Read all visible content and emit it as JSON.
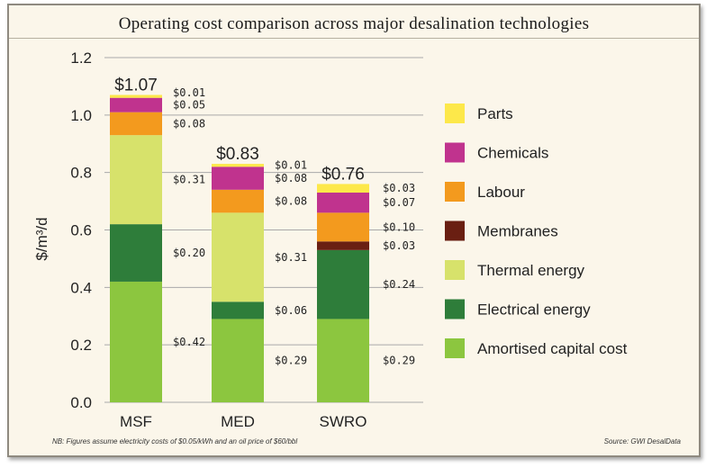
{
  "chart_data": {
    "type": "bar",
    "stacked": true,
    "title": "Operating cost comparison across major desalination technologies",
    "ylabel": "$/m³/d",
    "ylim": [
      0,
      1.2
    ],
    "yticks": [
      "0.0",
      "0.2",
      "0.4",
      "0.6",
      "0.8",
      "1.0",
      "1.2"
    ],
    "categories": [
      "MSF",
      "MED",
      "SWRO"
    ],
    "totals": [
      "$1.07",
      "$0.83",
      "$0.76"
    ],
    "series": [
      {
        "name": "Amortised capital cost",
        "color": "#8cc63f",
        "values": [
          0.42,
          0.29,
          0.29
        ],
        "labels": [
          "$0.42",
          "$0.29",
          "$0.29"
        ]
      },
      {
        "name": "Electrical energy",
        "color": "#2e7d3a",
        "values": [
          0.2,
          0.06,
          0.24
        ],
        "labels": [
          "$0.20",
          "$0.06",
          "$0.24"
        ]
      },
      {
        "name": "Thermal energy",
        "color": "#d7e26b",
        "values": [
          0.31,
          0.31,
          0
        ],
        "labels": [
          "$0.31",
          "$0.31",
          ""
        ]
      },
      {
        "name": "Membranes",
        "color": "#6a1f12",
        "values": [
          0,
          0,
          0.03
        ],
        "labels": [
          "",
          "",
          "$0.03"
        ]
      },
      {
        "name": "Labour",
        "color": "#f39a1e",
        "values": [
          0.08,
          0.08,
          0.1
        ],
        "labels": [
          "$0.08",
          "$0.08",
          "$0.10"
        ]
      },
      {
        "name": "Chemicals",
        "color": "#c0338e",
        "values": [
          0.05,
          0.08,
          0.07
        ],
        "labels": [
          "$0.05",
          "$0.08",
          "$0.07"
        ]
      },
      {
        "name": "Parts",
        "color": "#fde84a",
        "values": [
          0.01,
          0.01,
          0.03
        ],
        "labels": [
          "$0.01",
          "$0.01",
          "$0.03"
        ]
      }
    ],
    "legend_order": [
      "Parts",
      "Chemicals",
      "Labour",
      "Membranes",
      "Thermal energy",
      "Electrical energy",
      "Amortised capital cost"
    ],
    "legend_position": "right",
    "grid": true
  },
  "notes": {
    "footnote": "NB: Figures assume electricity costs of $0.05/kWh and an oil price of $60/bbl",
    "source": "Source: GWI DesalData"
  }
}
